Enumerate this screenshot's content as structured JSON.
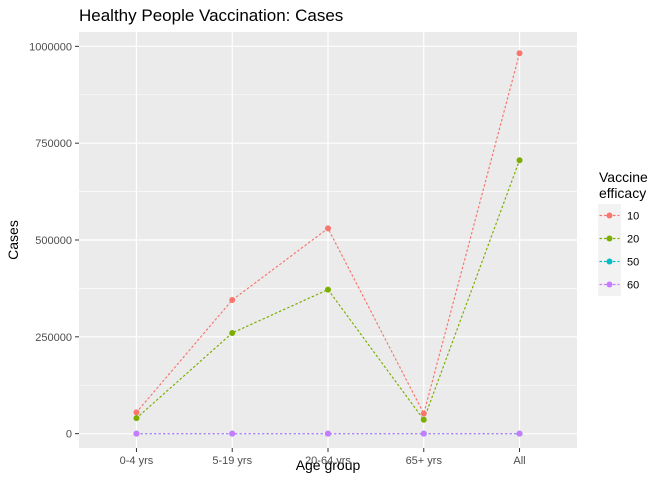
{
  "chart_data": {
    "type": "line",
    "title": "Healthy People Vaccination: Cases",
    "xlabel": "Age group",
    "ylabel": "Cases",
    "categories": [
      "0-4 yrs",
      "5-19 yrs",
      "20-64 yrs",
      "65+ yrs",
      "All"
    ],
    "ylim": [
      -37000,
      1037000
    ],
    "yticks": [
      0,
      250000,
      500000,
      750000,
      1000000
    ],
    "ytick_labels": [
      "0",
      "250000",
      "500000",
      "750000",
      "1000000"
    ],
    "grid": true,
    "legend": {
      "title_lines": [
        "Vaccine",
        "efficacy"
      ],
      "position": "right"
    },
    "series": [
      {
        "name": "10",
        "color": "#F8766D",
        "values": [
          55000,
          345000,
          530000,
          52000,
          982000
        ]
      },
      {
        "name": "20",
        "color": "#7CAE00",
        "values": [
          40000,
          260000,
          372000,
          36000,
          706000
        ]
      },
      {
        "name": "50",
        "color": "#00BFC4",
        "values": [
          0,
          0,
          0,
          0,
          0
        ]
      },
      {
        "name": "60",
        "color": "#C77CFF",
        "values": [
          0,
          0,
          0,
          0,
          0
        ]
      }
    ]
  }
}
